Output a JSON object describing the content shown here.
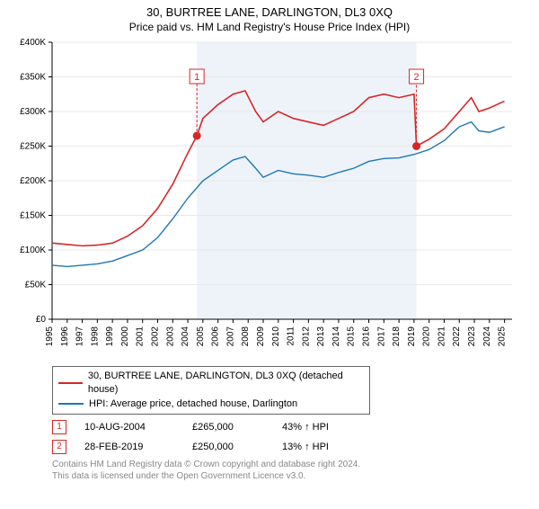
{
  "title": "30, BURTREE LANE, DARLINGTON, DL3 0XQ",
  "subtitle": "Price paid vs. HM Land Registry's House Price Index (HPI)",
  "chart": {
    "type": "line",
    "background_color": "#ffffff",
    "bbox_bg_color": "#eef3f9",
    "grid_color": "#e8e8e8",
    "axis_color": "#000000",
    "xlim": [
      1995,
      2025.5
    ],
    "ylim": [
      0,
      400000
    ],
    "ytick_step": 50000,
    "yticks": [
      "£0",
      "£50K",
      "£100K",
      "£150K",
      "£200K",
      "£250K",
      "£300K",
      "£350K",
      "£400K"
    ],
    "xticks": [
      1995,
      1996,
      1997,
      1998,
      1999,
      2000,
      2001,
      2002,
      2003,
      2004,
      2005,
      2006,
      2007,
      2008,
      2009,
      2010,
      2011,
      2012,
      2013,
      2014,
      2015,
      2016,
      2017,
      2018,
      2019,
      2020,
      2021,
      2022,
      2023,
      2024,
      2025
    ],
    "shade_ranges": [
      {
        "from": 2004.6,
        "to": 2019.16
      }
    ],
    "series": [
      {
        "name": "30, BURTREE LANE, DARLINGTON, DL3 0XQ (detached house)",
        "color": "#d62728",
        "line_width": 1.6,
        "points": [
          [
            1995,
            110000
          ],
          [
            1996,
            108000
          ],
          [
            1997,
            106000
          ],
          [
            1998,
            107000
          ],
          [
            1999,
            110000
          ],
          [
            2000,
            120000
          ],
          [
            2001,
            135000
          ],
          [
            2002,
            160000
          ],
          [
            2003,
            195000
          ],
          [
            2004,
            240000
          ],
          [
            2004.6,
            265000
          ],
          [
            2005,
            290000
          ],
          [
            2006,
            310000
          ],
          [
            2007,
            325000
          ],
          [
            2007.8,
            330000
          ],
          [
            2008.5,
            300000
          ],
          [
            2009,
            285000
          ],
          [
            2010,
            300000
          ],
          [
            2011,
            290000
          ],
          [
            2012,
            285000
          ],
          [
            2013,
            280000
          ],
          [
            2014,
            290000
          ],
          [
            2015,
            300000
          ],
          [
            2016,
            320000
          ],
          [
            2017,
            325000
          ],
          [
            2018,
            320000
          ],
          [
            2019,
            325000
          ],
          [
            2019.16,
            250000
          ],
          [
            2020,
            260000
          ],
          [
            2021,
            275000
          ],
          [
            2022,
            300000
          ],
          [
            2022.8,
            320000
          ],
          [
            2023.3,
            300000
          ],
          [
            2024,
            305000
          ],
          [
            2025,
            315000
          ]
        ]
      },
      {
        "name": "HPI: Average price, detached house, Darlington",
        "color": "#1f77b4",
        "line_width": 1.4,
        "points": [
          [
            1995,
            78000
          ],
          [
            1996,
            76000
          ],
          [
            1997,
            78000
          ],
          [
            1998,
            80000
          ],
          [
            1999,
            84000
          ],
          [
            2000,
            92000
          ],
          [
            2001,
            100000
          ],
          [
            2002,
            118000
          ],
          [
            2003,
            145000
          ],
          [
            2004,
            175000
          ],
          [
            2005,
            200000
          ],
          [
            2006,
            215000
          ],
          [
            2007,
            230000
          ],
          [
            2007.8,
            235000
          ],
          [
            2008.5,
            218000
          ],
          [
            2009,
            205000
          ],
          [
            2010,
            215000
          ],
          [
            2011,
            210000
          ],
          [
            2012,
            208000
          ],
          [
            2013,
            205000
          ],
          [
            2014,
            212000
          ],
          [
            2015,
            218000
          ],
          [
            2016,
            228000
          ],
          [
            2017,
            232000
          ],
          [
            2018,
            233000
          ],
          [
            2019,
            238000
          ],
          [
            2020,
            245000
          ],
          [
            2021,
            258000
          ],
          [
            2022,
            278000
          ],
          [
            2022.8,
            285000
          ],
          [
            2023.3,
            272000
          ],
          [
            2024,
            270000
          ],
          [
            2025,
            278000
          ]
        ]
      }
    ],
    "sale_markers": [
      {
        "label": "1",
        "x": 2004.6,
        "y": 265000,
        "color": "#d62728"
      },
      {
        "label": "2",
        "x": 2019.16,
        "y": 250000,
        "color": "#d62728"
      }
    ],
    "label_fontsize": 10
  },
  "legend": {
    "items": [
      {
        "color": "#d62728",
        "label": "30, BURTREE LANE, DARLINGTON, DL3 0XQ (detached house)"
      },
      {
        "color": "#1f77b4",
        "label": "HPI: Average price, detached house, Darlington"
      }
    ]
  },
  "sales": [
    {
      "num": "1",
      "date": "10-AUG-2004",
      "price": "£265,000",
      "delta": "43% ↑ HPI",
      "color": "#d62728"
    },
    {
      "num": "2",
      "date": "28-FEB-2019",
      "price": "£250,000",
      "delta": "13% ↑ HPI",
      "color": "#d62728"
    }
  ],
  "footer_line1": "Contains HM Land Registry data © Crown copyright and database right 2024.",
  "footer_line2": "This data is licensed under the Open Government Licence v3.0."
}
